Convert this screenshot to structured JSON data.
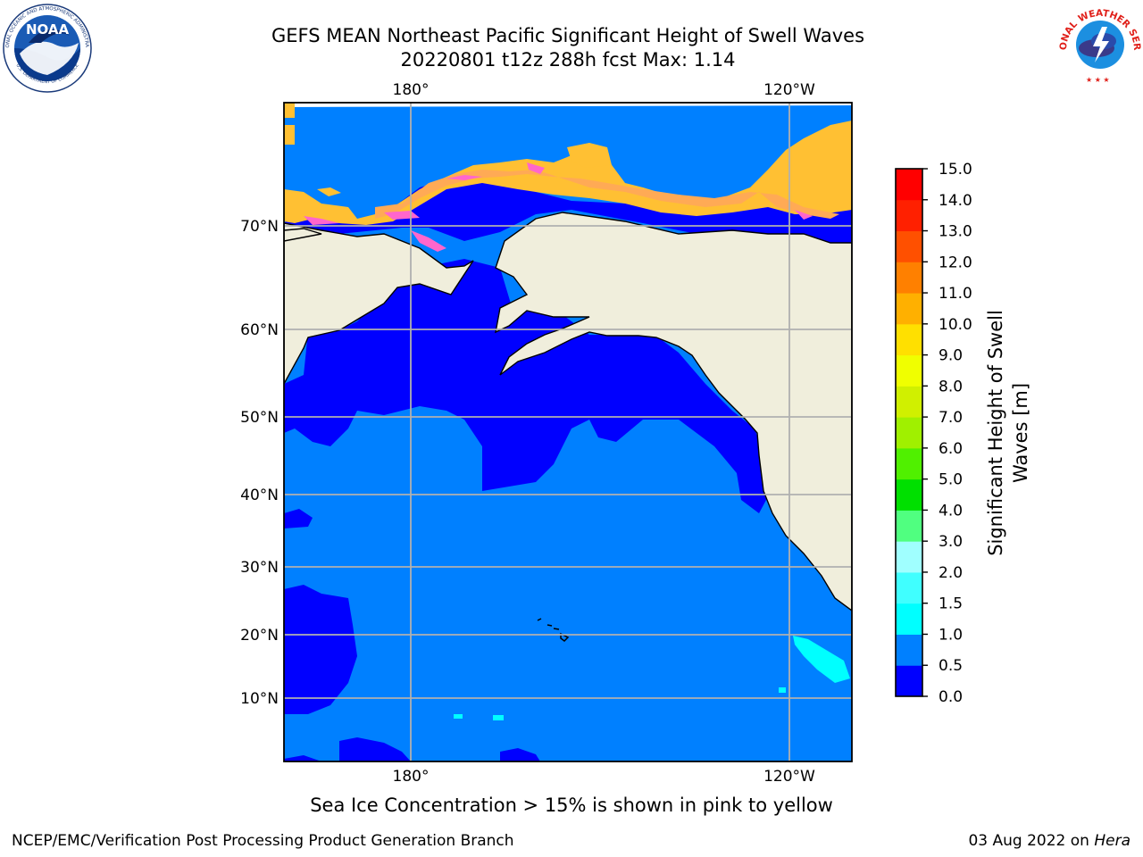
{
  "title": {
    "line1": "GEFS MEAN Northeast Pacific Significant Height of Swell Waves",
    "line2": "20220801 t12z 288h fcst   Max: 1.14"
  },
  "map": {
    "projection": "latitude-longitude",
    "region": "Northeast Pacific",
    "lon_ticks": [
      "180°",
      "120°W"
    ],
    "lat_ticks": [
      "70°N",
      "60°N",
      "50°N",
      "40°N",
      "30°N",
      "20°N",
      "10°N"
    ],
    "ocean_color_0_0_5": "#0000ff",
    "ocean_color_0_5_1_0": "#0080ff",
    "land_color": "#f0eedc",
    "sea_ice_colors": [
      "#ff66cc",
      "#ffaa55",
      "#ffc033"
    ]
  },
  "colorbar": {
    "label": "Significant Height of Swell Waves [m]",
    "label_line1": "Significant Height of Swell",
    "label_line2": "Waves [m]",
    "ticks": [
      "0.0",
      "0.5",
      "1.0",
      "1.5",
      "2.0",
      "3.0",
      "4.0",
      "5.0",
      "6.0",
      "7.0",
      "8.0",
      "9.0",
      "10.0",
      "11.0",
      "12.0",
      "13.0",
      "14.0",
      "15.0"
    ],
    "colors": [
      "#0000ff",
      "#0080ff",
      "#00ffff",
      "#40ffff",
      "#a0ffff",
      "#50ff80",
      "#00e000",
      "#50f000",
      "#a0f000",
      "#d0f000",
      "#f0ff00",
      "#ffe000",
      "#ffb000",
      "#ff8000",
      "#ff5000",
      "#ff2000",
      "#ff0000"
    ]
  },
  "caption": "Sea Ice Concentration > 15% is shown in pink to yellow",
  "footer": {
    "left": "NCEP/EMC/Verification Post Processing Product Generation Branch",
    "right_date": "03 Aug 2022 on ",
    "right_host": "Hera"
  },
  "logos": {
    "noaa": {
      "text": "NOAA"
    },
    "nws": {
      "text": "NATIONAL WEATHER SERVICE"
    }
  }
}
